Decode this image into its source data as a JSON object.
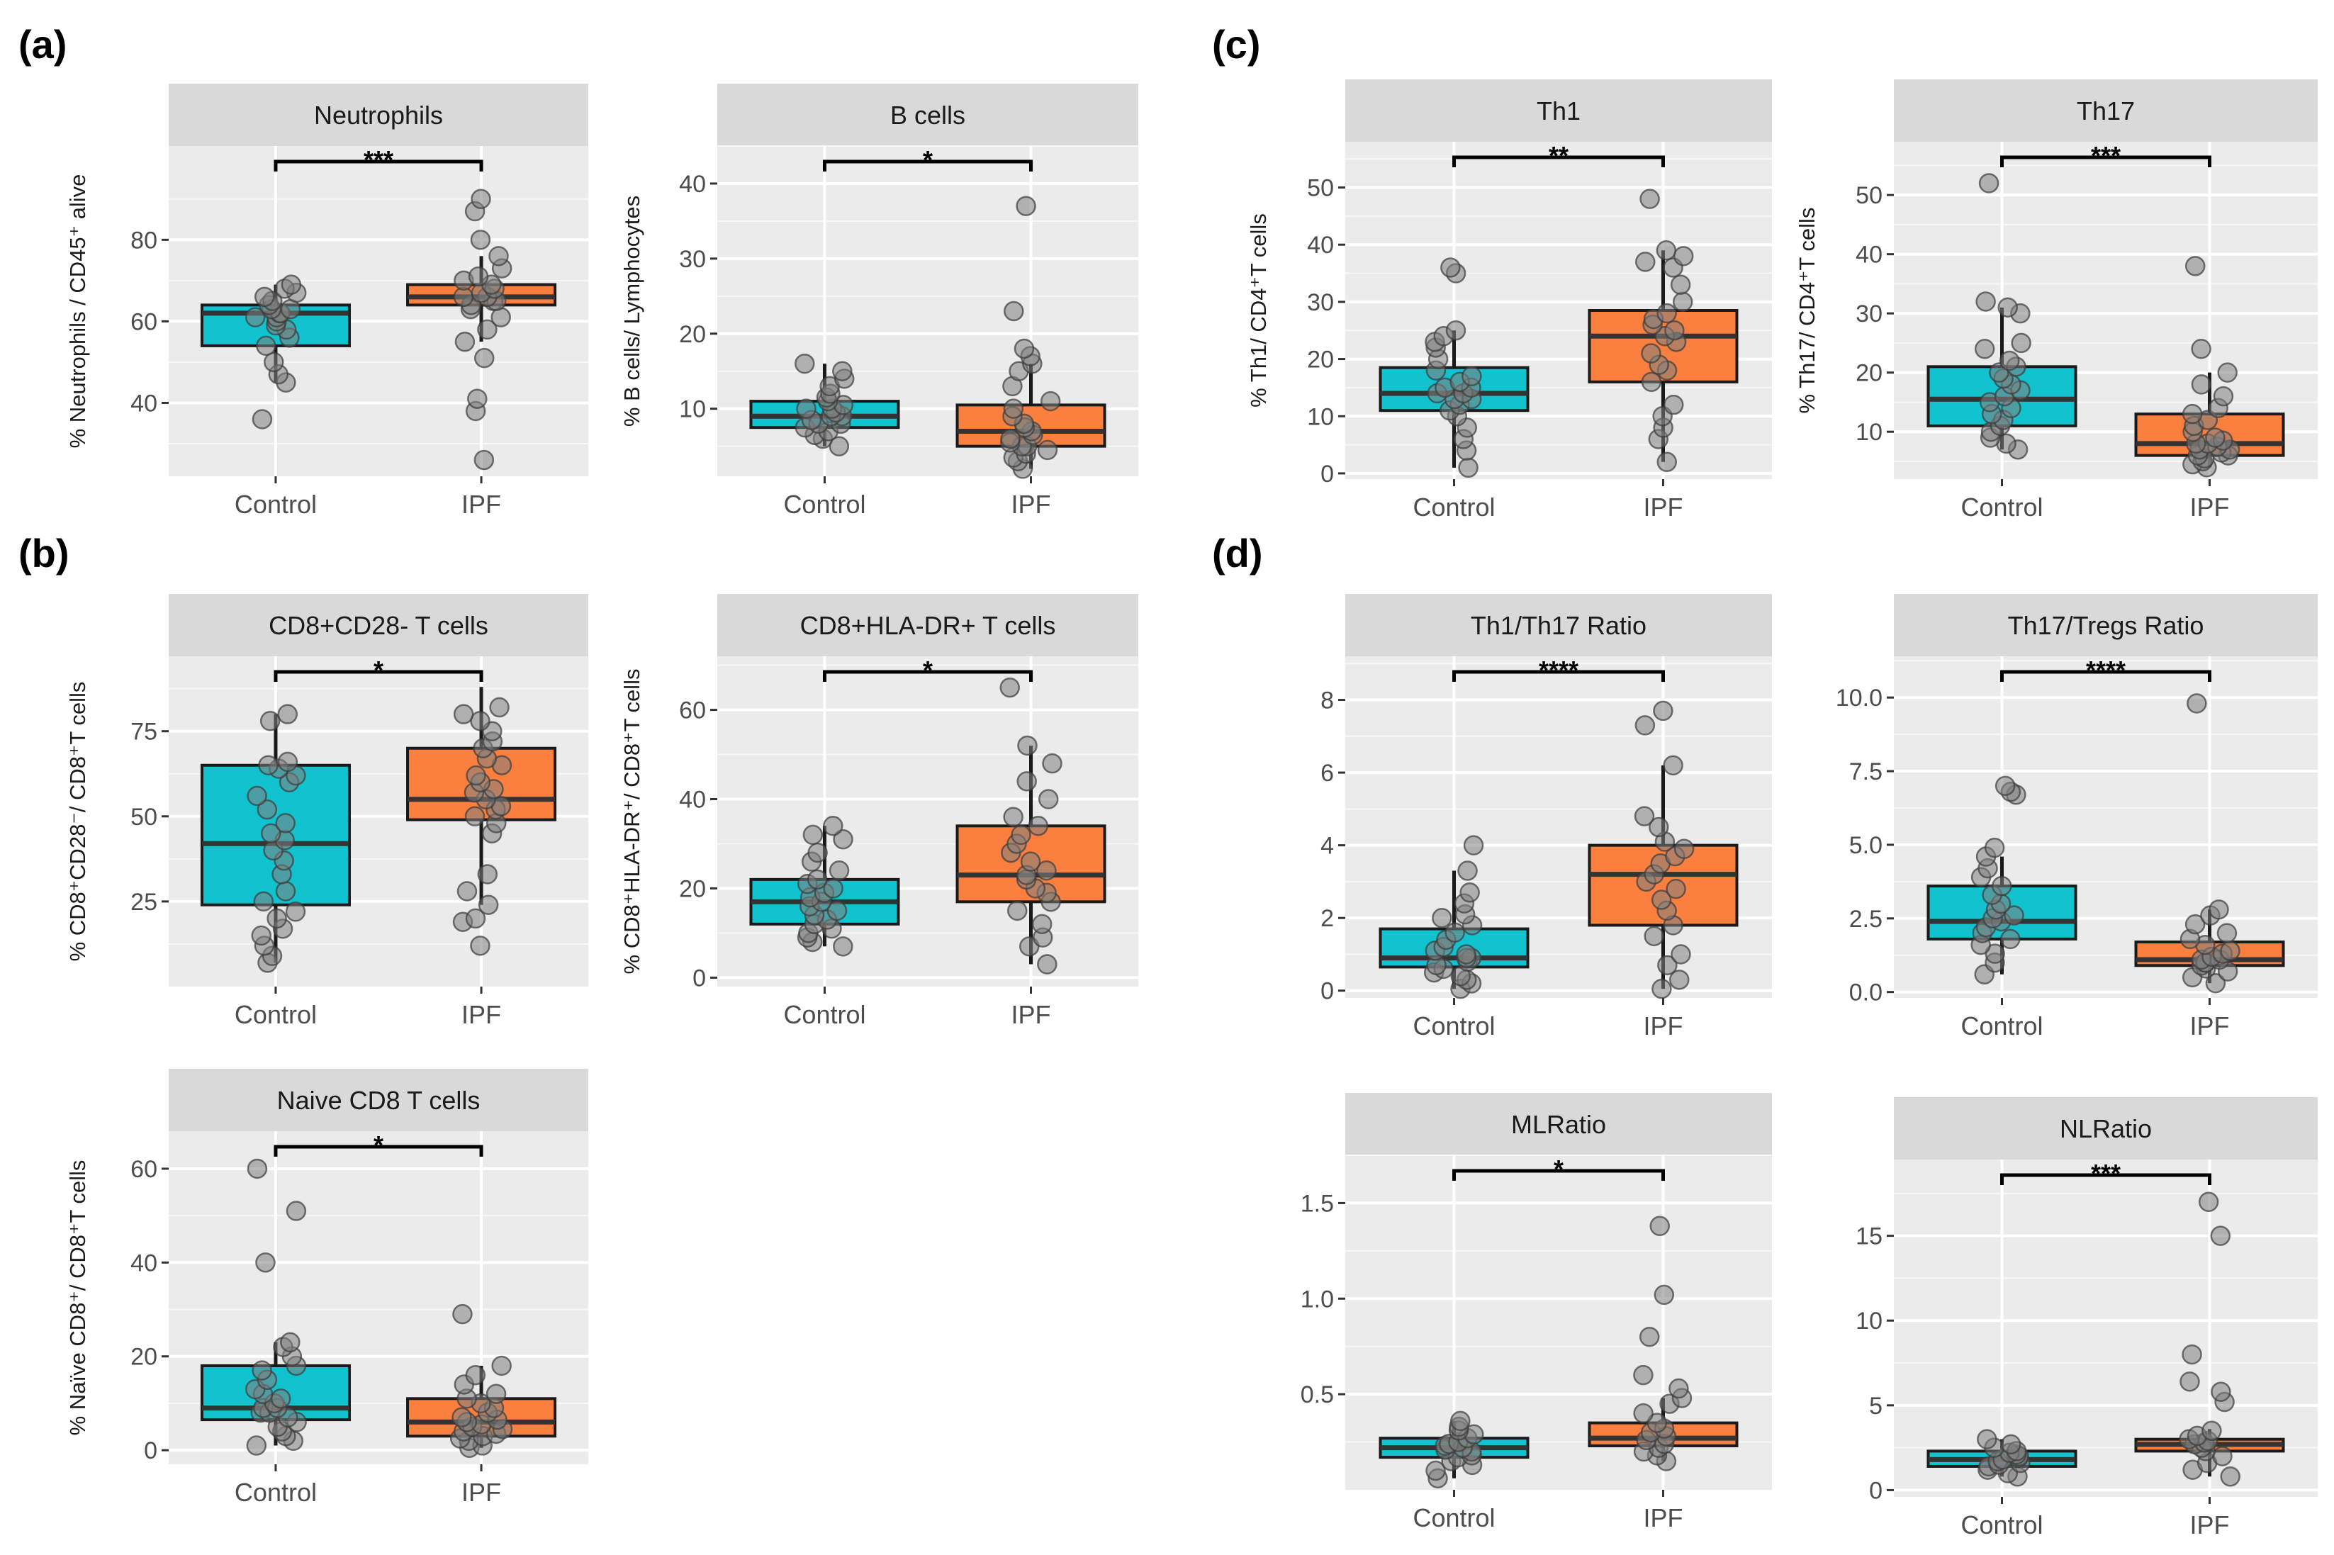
{
  "figure": {
    "panel_letters": [
      "(a)",
      "(b)",
      "(c)",
      "(d)"
    ],
    "colors": {
      "control": "#00bfc4",
      "ipf": "#f8766d",
      "ipf_fill": "#fb8040",
      "control_fill": "#11c2cf"
    }
  },
  "chart_data": [
    {
      "id": "neutrophils",
      "type": "box",
      "title": "Neutrophils",
      "ylabel": "% Neutrophils / CD45⁺ alive",
      "categories": [
        "Control",
        "IPF"
      ],
      "ylim": [
        22,
        103
      ],
      "yticks": [
        40,
        60,
        80
      ],
      "tick_labels": [
        "40",
        "60",
        "80"
      ],
      "significance": "***",
      "groups": [
        {
          "name": "Control",
          "q1": 54,
          "median": 62,
          "q3": 64,
          "whisker_low": 45,
          "whisker_high": 69,
          "points": [
            36,
            45,
            47,
            50,
            54,
            56,
            58,
            59,
            60,
            61,
            61,
            62,
            62,
            63,
            63,
            64,
            65,
            66,
            67,
            68,
            69
          ]
        },
        {
          "name": "IPF",
          "q1": 64,
          "median": 66,
          "q3": 69,
          "whisker_low": 55,
          "whisker_high": 76,
          "points": [
            26,
            38,
            41,
            51,
            55,
            58,
            61,
            63,
            64,
            65,
            65,
            66,
            66,
            67,
            68,
            69,
            70,
            71,
            73,
            76,
            80,
            87,
            90
          ]
        }
      ]
    },
    {
      "id": "bcells",
      "type": "box",
      "title": "B cells",
      "ylabel": "% B cells/ Lymphocytes",
      "categories": [
        "Control",
        "IPF"
      ],
      "ylim": [
        1,
        45
      ],
      "yticks": [
        10,
        20,
        30,
        40
      ],
      "tick_labels": [
        "10",
        "20",
        "30",
        "40"
      ],
      "significance": "*",
      "groups": [
        {
          "name": "Control",
          "q1": 7.5,
          "median": 9,
          "q3": 11,
          "whisker_low": 5,
          "whisker_high": 16,
          "points": [
            5,
            6,
            6.5,
            7,
            7.5,
            8,
            8,
            8.5,
            9,
            9,
            9.5,
            10,
            10,
            10.5,
            11,
            11.5,
            12,
            13,
            14,
            15,
            16
          ]
        },
        {
          "name": "IPF",
          "q1": 5,
          "median": 7,
          "q3": 10.5,
          "whisker_low": 2,
          "whisker_high": 16,
          "points": [
            2,
            3,
            3.5,
            4,
            4.5,
            5,
            5,
            5.5,
            6,
            6.5,
            7,
            7.5,
            8,
            9,
            10,
            11,
            13,
            15,
            16,
            17,
            18,
            23,
            37
          ]
        }
      ]
    },
    {
      "id": "th1",
      "type": "box",
      "title": "Th1",
      "ylabel": "% Th1/ CD4⁺T cells",
      "categories": [
        "Control",
        "IPF"
      ],
      "ylim": [
        -1,
        58
      ],
      "yticks": [
        0,
        10,
        20,
        30,
        40,
        50
      ],
      "tick_labels": [
        "0",
        "10",
        "20",
        "30",
        "40",
        "50"
      ],
      "significance": "**",
      "groups": [
        {
          "name": "Control",
          "q1": 11,
          "median": 14,
          "q3": 18.5,
          "whisker_low": 1,
          "whisker_high": 25,
          "points": [
            1,
            4,
            6,
            8,
            10,
            11,
            12,
            13,
            13,
            14,
            14,
            15,
            15,
            16,
            17,
            18,
            20,
            22,
            23,
            24,
            25,
            35,
            36
          ]
        },
        {
          "name": "IPF",
          "q1": 16,
          "median": 24,
          "q3": 28.5,
          "whisker_low": 2,
          "whisker_high": 39,
          "points": [
            2,
            6,
            8,
            10,
            12,
            16,
            18,
            19,
            21,
            23,
            24,
            25,
            26,
            27,
            28,
            30,
            33,
            36,
            37,
            38,
            39,
            48
          ]
        }
      ]
    },
    {
      "id": "th17",
      "type": "box",
      "title": "Th17",
      "ylabel": "% Th17/ CD4⁺T cells",
      "categories": [
        "Control",
        "IPF"
      ],
      "ylim": [
        2,
        59
      ],
      "yticks": [
        10,
        20,
        30,
        40,
        50
      ],
      "tick_labels": [
        "10",
        "20",
        "30",
        "40",
        "50"
      ],
      "significance": "***",
      "groups": [
        {
          "name": "Control",
          "q1": 11,
          "median": 15.5,
          "q3": 21,
          "whisker_low": 7,
          "whisker_high": 31,
          "points": [
            7,
            8,
            9,
            10,
            11,
            12,
            13,
            14,
            15,
            16,
            17,
            18,
            19,
            20,
            21,
            22,
            24,
            25,
            30,
            31,
            32,
            52
          ]
        },
        {
          "name": "IPF",
          "q1": 6,
          "median": 8,
          "q3": 13,
          "whisker_low": 4,
          "whisker_high": 20,
          "points": [
            4,
            4.5,
            5,
            5.5,
            6,
            6,
            6.5,
            7,
            7,
            7.5,
            8,
            8,
            8.5,
            9,
            10,
            11,
            12,
            13,
            14,
            16,
            18,
            20,
            24,
            38
          ]
        }
      ]
    },
    {
      "id": "cd8cd28",
      "type": "box",
      "title": "CD8+CD28- T cells",
      "ylabel": "% CD8⁺CD28⁻/ CD8⁺T cells",
      "categories": [
        "Control",
        "IPF"
      ],
      "ylim": [
        0,
        97
      ],
      "yticks": [
        25,
        50,
        75
      ],
      "tick_labels": [
        "25",
        "50",
        "75"
      ],
      "significance": "*",
      "groups": [
        {
          "name": "Control",
          "q1": 24,
          "median": 42,
          "q3": 65,
          "whisker_low": 7,
          "whisker_high": 80,
          "points": [
            7,
            9,
            12,
            15,
            17,
            20,
            22,
            25,
            28,
            33,
            37,
            40,
            43,
            45,
            48,
            52,
            56,
            60,
            62,
            64,
            65,
            66,
            78,
            80
          ]
        },
        {
          "name": "IPF",
          "q1": 49,
          "median": 55,
          "q3": 70,
          "whisker_low": 24,
          "whisker_high": 88,
          "points": [
            12,
            19,
            20,
            24,
            28,
            33,
            45,
            48,
            50,
            52,
            53,
            55,
            57,
            58,
            60,
            62,
            65,
            67,
            70,
            72,
            75,
            78,
            80,
            82
          ]
        }
      ]
    },
    {
      "id": "cd8hla",
      "type": "box",
      "title": "CD8+HLA-DR+ T cells",
      "ylabel": "% CD8⁺HLA-DR⁺/ CD8⁺T cells",
      "categories": [
        "Control",
        "IPF"
      ],
      "ylim": [
        -2,
        72
      ],
      "yticks": [
        0,
        20,
        40,
        60
      ],
      "tick_labels": [
        "0",
        "20",
        "40",
        "60"
      ],
      "significance": "*",
      "groups": [
        {
          "name": "Control",
          "q1": 12,
          "median": 17,
          "q3": 22,
          "whisker_low": 7,
          "whisker_high": 34,
          "points": [
            7,
            8,
            9,
            10,
            11,
            12,
            13,
            14,
            15,
            16,
            17,
            18,
            19,
            20,
            21,
            22,
            24,
            26,
            28,
            31,
            32,
            34
          ]
        },
        {
          "name": "IPF",
          "q1": 17,
          "median": 23,
          "q3": 34,
          "whisker_low": 3,
          "whisker_high": 52,
          "points": [
            3,
            7,
            9,
            12,
            15,
            17,
            19,
            20,
            22,
            23,
            24,
            26,
            28,
            30,
            32,
            34,
            36,
            40,
            44,
            48,
            52,
            65
          ]
        }
      ]
    },
    {
      "id": "naivecd8",
      "type": "box",
      "title": "Naive CD8 T cells",
      "ylabel": "% Naïve CD8⁺/ CD8⁺T cells",
      "categories": [
        "Control",
        "IPF"
      ],
      "ylim": [
        -3,
        68
      ],
      "yticks": [
        0,
        20,
        40,
        60
      ],
      "tick_labels": [
        "0",
        "20",
        "40",
        "60"
      ],
      "significance": "*",
      "groups": [
        {
          "name": "Control",
          "q1": 6.5,
          "median": 9,
          "q3": 18,
          "whisker_low": 1,
          "whisker_high": 23,
          "points": [
            1,
            2,
            3,
            4,
            5,
            6,
            7,
            8,
            8,
            9,
            9,
            10,
            11,
            12,
            13,
            15,
            17,
            18,
            20,
            22,
            23,
            40,
            51,
            60
          ]
        },
        {
          "name": "IPF",
          "q1": 3,
          "median": 6,
          "q3": 11,
          "whisker_low": 0.5,
          "whisker_high": 18,
          "points": [
            0.5,
            1,
            2,
            2.5,
            3,
            3.5,
            4,
            4.5,
            5,
            5.5,
            6,
            6.5,
            7,
            8,
            9,
            10,
            11,
            12,
            14,
            16,
            18,
            29
          ]
        }
      ]
    },
    {
      "id": "th1th17",
      "type": "box",
      "title": "Th1/Th17 Ratio",
      "ylabel": "",
      "categories": [
        "Control",
        "IPF"
      ],
      "ylim": [
        -0.2,
        9.2
      ],
      "yticks": [
        0,
        2,
        4,
        6,
        8
      ],
      "tick_labels": [
        "0",
        "2",
        "4",
        "6",
        "8"
      ],
      "significance": "****",
      "groups": [
        {
          "name": "Control",
          "q1": 0.65,
          "median": 0.9,
          "q3": 1.7,
          "whisker_low": 0.05,
          "whisker_high": 3.3,
          "points": [
            0.05,
            0.2,
            0.3,
            0.4,
            0.5,
            0.6,
            0.7,
            0.8,
            0.9,
            0.9,
            1.0,
            1.1,
            1.2,
            1.4,
            1.6,
            1.8,
            2.0,
            2.1,
            2.4,
            2.7,
            3.3,
            4.0
          ]
        },
        {
          "name": "IPF",
          "q1": 1.8,
          "median": 3.2,
          "q3": 4.0,
          "whisker_low": 0.05,
          "whisker_high": 6.2,
          "points": [
            0.05,
            0.3,
            0.7,
            1.0,
            1.5,
            1.8,
            2.2,
            2.5,
            2.8,
            3.0,
            3.2,
            3.5,
            3.7,
            3.9,
            4.1,
            4.5,
            4.8,
            6.2,
            7.3,
            7.7
          ]
        }
      ]
    },
    {
      "id": "th17tregs",
      "type": "box",
      "title": "Th17/Tregs Ratio",
      "ylabel": "",
      "categories": [
        "Control",
        "IPF"
      ],
      "ylim": [
        -0.2,
        11.4
      ],
      "yticks": [
        0,
        2.5,
        5,
        7.5,
        10
      ],
      "tick_labels": [
        "0.0",
        "2.5",
        "5.0",
        "7.5",
        "10.0"
      ],
      "significance": "****",
      "groups": [
        {
          "name": "Control",
          "q1": 1.8,
          "median": 2.4,
          "q3": 3.6,
          "whisker_low": 0.6,
          "whisker_high": 4.6,
          "points": [
            0.6,
            1.0,
            1.3,
            1.6,
            1.8,
            2.0,
            2.2,
            2.4,
            2.5,
            2.6,
            2.8,
            3.0,
            3.3,
            3.6,
            3.9,
            4.2,
            4.6,
            4.9,
            6.7,
            6.8,
            7.0
          ]
        },
        {
          "name": "IPF",
          "q1": 0.9,
          "median": 1.1,
          "q3": 1.7,
          "whisker_low": 0.3,
          "whisker_high": 2.8,
          "points": [
            0.3,
            0.5,
            0.7,
            0.8,
            0.9,
            1.0,
            1.0,
            1.1,
            1.1,
            1.2,
            1.3,
            1.4,
            1.6,
            1.8,
            2.0,
            2.3,
            2.6,
            2.8,
            9.8
          ]
        }
      ]
    },
    {
      "id": "mlratio",
      "type": "box",
      "title": "MLRatio",
      "ylabel": "",
      "categories": [
        "Control",
        "IPF"
      ],
      "ylim": [
        0,
        1.75
      ],
      "yticks": [
        0.5,
        1.0,
        1.5
      ],
      "tick_labels": [
        "0.5",
        "1.0",
        "1.5"
      ],
      "significance": "*",
      "groups": [
        {
          "name": "Control",
          "q1": 0.17,
          "median": 0.22,
          "q3": 0.27,
          "whisker_low": 0.06,
          "whisker_high": 0.36,
          "points": [
            0.06,
            0.1,
            0.13,
            0.15,
            0.17,
            0.18,
            0.2,
            0.21,
            0.22,
            0.23,
            0.24,
            0.25,
            0.27,
            0.29,
            0.31,
            0.33,
            0.36
          ]
        },
        {
          "name": "IPF",
          "q1": 0.23,
          "median": 0.27,
          "q3": 0.35,
          "whisker_low": 0.15,
          "whisker_high": 0.48,
          "points": [
            0.15,
            0.18,
            0.2,
            0.22,
            0.24,
            0.26,
            0.28,
            0.3,
            0.32,
            0.35,
            0.4,
            0.45,
            0.48,
            0.53,
            0.6,
            0.8,
            1.02,
            1.38
          ]
        }
      ]
    },
    {
      "id": "nlratio",
      "type": "box",
      "title": "NLRatio",
      "ylabel": "",
      "categories": [
        "Control",
        "IPF"
      ],
      "ylim": [
        -0.4,
        19.5
      ],
      "yticks": [
        0,
        5,
        10,
        15
      ],
      "tick_labels": [
        "0",
        "5",
        "10",
        "15"
      ],
      "significance": "***",
      "groups": [
        {
          "name": "Control",
          "q1": 1.4,
          "median": 1.8,
          "q3": 2.3,
          "whisker_low": 0.8,
          "whisker_high": 3.0,
          "points": [
            0.8,
            1.0,
            1.2,
            1.4,
            1.5,
            1.6,
            1.7,
            1.8,
            1.9,
            2.0,
            2.1,
            2.2,
            2.3,
            2.5,
            2.7,
            3.0
          ]
        },
        {
          "name": "IPF",
          "q1": 2.3,
          "median": 2.7,
          "q3": 3.0,
          "whisker_low": 0.8,
          "whisker_high": 3.6,
          "points": [
            0.8,
            1.2,
            1.6,
            2.0,
            2.3,
            2.5,
            2.7,
            2.8,
            2.9,
            3.0,
            3.2,
            3.5,
            5.2,
            5.8,
            6.4,
            8.0,
            15.0,
            17.0
          ]
        }
      ]
    }
  ]
}
